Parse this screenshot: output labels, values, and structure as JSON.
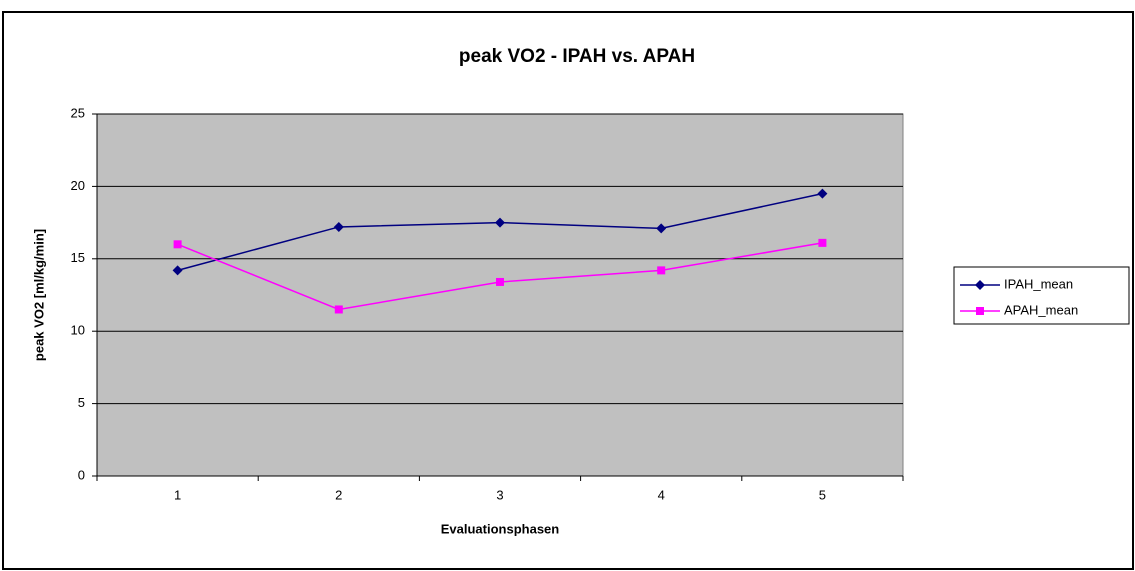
{
  "chart_data": {
    "type": "line",
    "title": "peak VO2 - IPAH vs. APAH",
    "x_label": "Evaluationsphasen",
    "y_label": "peak VO2 [ml/kg/min]",
    "categories": [
      "1",
      "2",
      "3",
      "4",
      "5"
    ],
    "series": [
      {
        "name": "IPAH_mean",
        "color": "#000080",
        "marker": "diamond",
        "values": [
          14.2,
          17.2,
          17.5,
          17.1,
          19.5
        ]
      },
      {
        "name": "APAH_mean",
        "color": "#ff00ff",
        "marker": "square",
        "values": [
          16.0,
          11.5,
          13.4,
          14.2,
          16.1
        ]
      }
    ],
    "ylim": [
      0,
      25
    ],
    "yticks": [
      0,
      5,
      10,
      15,
      20,
      25
    ],
    "grid": true,
    "legend": "right"
  }
}
